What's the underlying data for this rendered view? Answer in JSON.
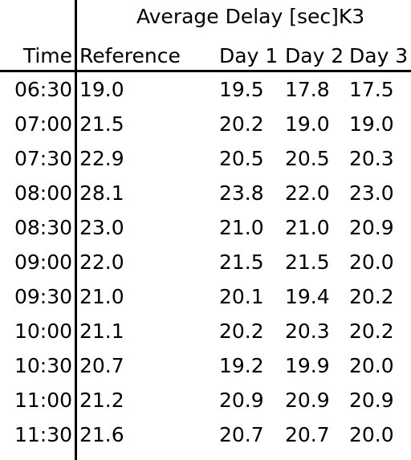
{
  "header": {
    "group_title": "Average Delay [sec]K3",
    "columns": [
      "Time",
      "Reference",
      "Day 1",
      "Day 2",
      "Day 3"
    ]
  },
  "rows": [
    {
      "time": "06:30",
      "values": [
        "19.0",
        "19.5",
        "17.8",
        "17.5"
      ]
    },
    {
      "time": "07:00",
      "values": [
        "21.5",
        "20.2",
        "19.0",
        "19.0"
      ]
    },
    {
      "time": "07:30",
      "values": [
        "22.9",
        "20.5",
        "20.5",
        "20.3"
      ]
    },
    {
      "time": "08:00",
      "values": [
        "28.1",
        "23.8",
        "22.0",
        "23.0"
      ]
    },
    {
      "time": "08:30",
      "values": [
        "23.0",
        "21.0",
        "21.0",
        "20.9"
      ]
    },
    {
      "time": "09:00",
      "values": [
        "22.0",
        "21.5",
        "21.5",
        "20.0"
      ]
    },
    {
      "time": "09:30",
      "values": [
        "21.0",
        "20.1",
        "19.4",
        "20.2"
      ]
    },
    {
      "time": "10:00",
      "values": [
        "21.1",
        "20.2",
        "20.3",
        "20.2"
      ]
    },
    {
      "time": "10:30",
      "values": [
        "20.7",
        "19.2",
        "19.9",
        "20.0"
      ]
    },
    {
      "time": "11:00",
      "values": [
        "21.2",
        "20.9",
        "20.9",
        "20.9"
      ]
    },
    {
      "time": "11:30",
      "values": [
        "21.6",
        "20.7",
        "20.7",
        "20.0"
      ]
    }
  ]
}
